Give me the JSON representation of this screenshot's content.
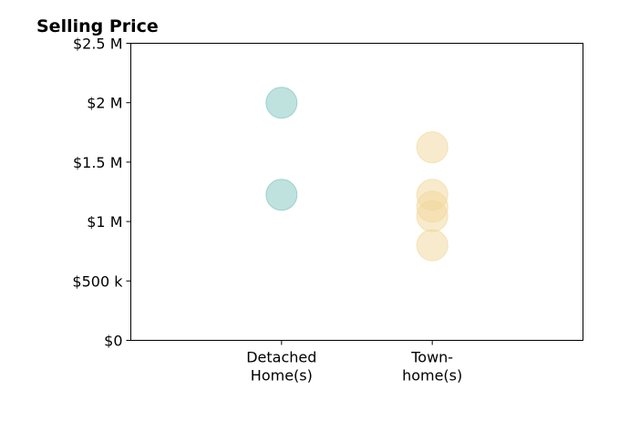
{
  "chart_data": {
    "type": "scatter",
    "title": "Selling Price",
    "xlabel": "",
    "ylabel": "",
    "categories": [
      [
        "Detached",
        "Home(s)"
      ],
      [
        "Town-",
        "home(s)"
      ]
    ],
    "y_ticks": [
      {
        "value": 0,
        "label": "$0"
      },
      {
        "value": 500000,
        "label": "$500 k"
      },
      {
        "value": 1000000,
        "label": "$1 M"
      },
      {
        "value": 1500000,
        "label": "$1.5 M"
      },
      {
        "value": 2000000,
        "label": "$2 M"
      },
      {
        "value": 2500000,
        "label": "$2.5 M"
      }
    ],
    "ylim": [
      0,
      2500000
    ],
    "xlim": [
      -1,
      2
    ],
    "grid": false,
    "legend": "none",
    "series": [
      {
        "category_index": 0,
        "color": "#80c6c0",
        "values": [
          2000000,
          1225000
        ]
      },
      {
        "category_index": 1,
        "color": "#f1d89c",
        "values": [
          1625000,
          1225000,
          1125000,
          1045000,
          800000
        ]
      }
    ]
  }
}
